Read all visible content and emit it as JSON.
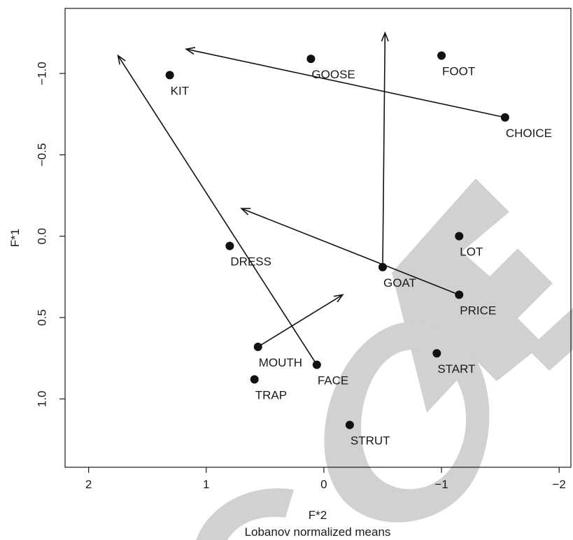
{
  "chart_data": {
    "type": "scatter",
    "title": "",
    "xlabel": "F*2",
    "subtitle": "Lobanov normalized means",
    "ylabel": "F*1",
    "xlim": [
      2.2,
      -2.1
    ],
    "ylim": [
      -1.4,
      1.42
    ],
    "x_reversed": true,
    "y_reversed": true,
    "grid": false,
    "x_ticks": [
      2,
      1,
      0,
      -1,
      -2
    ],
    "x_tick_labels": [
      "2",
      "1",
      "0",
      "−1",
      "−2"
    ],
    "y_ticks": [
      -1.0,
      -0.5,
      0.0,
      0.5,
      1.0
    ],
    "y_tick_labels": [
      "−1.0",
      "−0.5",
      "0.0",
      "0.5",
      "1.0"
    ],
    "points": [
      {
        "label": "KIT",
        "x": 1.31,
        "y": -0.99
      },
      {
        "label": "GOOSE",
        "x": 0.11,
        "y": -1.09
      },
      {
        "label": "FOOT",
        "x": -1.0,
        "y": -1.11
      },
      {
        "label": "CHOICE",
        "x": -1.54,
        "y": -0.73
      },
      {
        "label": "LOT",
        "x": -1.15,
        "y": 0.0
      },
      {
        "label": "DRESS",
        "x": 0.8,
        "y": 0.06
      },
      {
        "label": "GOAT",
        "x": -0.5,
        "y": 0.19
      },
      {
        "label": "PRICE",
        "x": -1.15,
        "y": 0.36
      },
      {
        "label": "MOUTH",
        "x": 0.56,
        "y": 0.68
      },
      {
        "label": "FACE",
        "x": 0.06,
        "y": 0.79
      },
      {
        "label": "START",
        "x": -0.96,
        "y": 0.72
      },
      {
        "label": "TRAP",
        "x": 0.59,
        "y": 0.88
      },
      {
        "label": "STRUT",
        "x": -0.22,
        "y": 1.16
      }
    ],
    "arrows": [
      {
        "from": "CHOICE",
        "to": [
          1.17,
          -1.15
        ]
      },
      {
        "from": "GOAT",
        "to": [
          -0.52,
          -1.25
        ]
      },
      {
        "from": "FACE",
        "to": [
          1.75,
          -1.11
        ]
      },
      {
        "from": "PRICE",
        "to": [
          0.7,
          -0.17
        ]
      },
      {
        "from": "MOUTH",
        "to": [
          -0.16,
          0.36
        ]
      }
    ],
    "colors": {
      "points": "#111111",
      "arrows": "#111111",
      "watermark": "#cfcfcf"
    }
  }
}
